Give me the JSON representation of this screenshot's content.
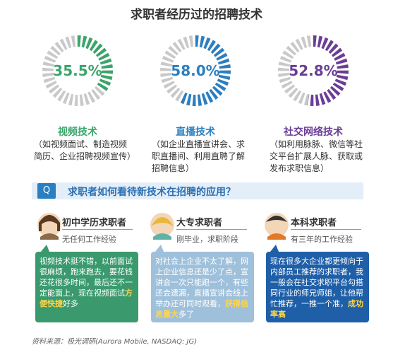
{
  "title": "求职者经历过的招聘技术",
  "chart_data": [
    {
      "type": "donut",
      "title": "视频技术",
      "subtitle": "（如视频面试、制造视频简历、企业招聘视频宣传）",
      "values": [
        35.5
      ],
      "value_labels": [
        "35.5%"
      ],
      "color": "#3aa56a",
      "ylim": [
        0,
        100
      ]
    },
    {
      "type": "donut",
      "title": "直播技术",
      "subtitle": "（如企业直播宣讲会、求职直播间、利用直聘了解招聘信息）",
      "values": [
        58.0
      ],
      "value_labels": [
        "58.0%"
      ],
      "color": "#2a7fc2",
      "ylim": [
        0,
        100
      ]
    },
    {
      "type": "donut",
      "title": "社交网络技术",
      "subtitle": "（如利用脉脉、微信等社交平台扩展人脉、获取或发布求职信息）",
      "values": [
        52.8
      ],
      "value_labels": [
        "52.8%"
      ],
      "color": "#6a3d96",
      "ylim": [
        0,
        100
      ]
    }
  ],
  "question": {
    "badge": "Q",
    "text": "求职者如何看待新技术在招聘的应用？"
  },
  "personas": [
    {
      "name": "初中学历求职者",
      "note": "无任何工作经验",
      "quote": [
        {
          "text": "视频技术挺不错，以前面试很麻烦，跑来跑去，要花钱还花很多时间，最后还不一定能面上，现在视频面试"
        },
        {
          "text": "方便快捷",
          "em": true
        },
        {
          "text": "好多"
        }
      ]
    },
    {
      "name": "大专求职者",
      "note": "刚毕业，求职阶段",
      "quote": [
        {
          "text": "对社会上企业不太了解，网上企业信息还是少了点，宣讲会一次只能跑一个，有些还会遗漏，直播宣讲会线上举办还可同时观看，"
        },
        {
          "text": "获得信息量大",
          "em": true
        },
        {
          "text": "多了"
        }
      ]
    },
    {
      "name": "本科求职者",
      "note": "有三年的工作经验",
      "quote": [
        {
          "text": "现在很多大企业都更倾向于内部员工推荐的求职者，我一般会在社交求职平台勾搭同行业的师兄师姐，让他帮忙推荐，一推一个准，"
        },
        {
          "text": "成功率高",
          "em": true
        }
      ]
    }
  ],
  "source": "资料来源：极光调研(Aurora Mobile, NASDAQ: JG)"
}
